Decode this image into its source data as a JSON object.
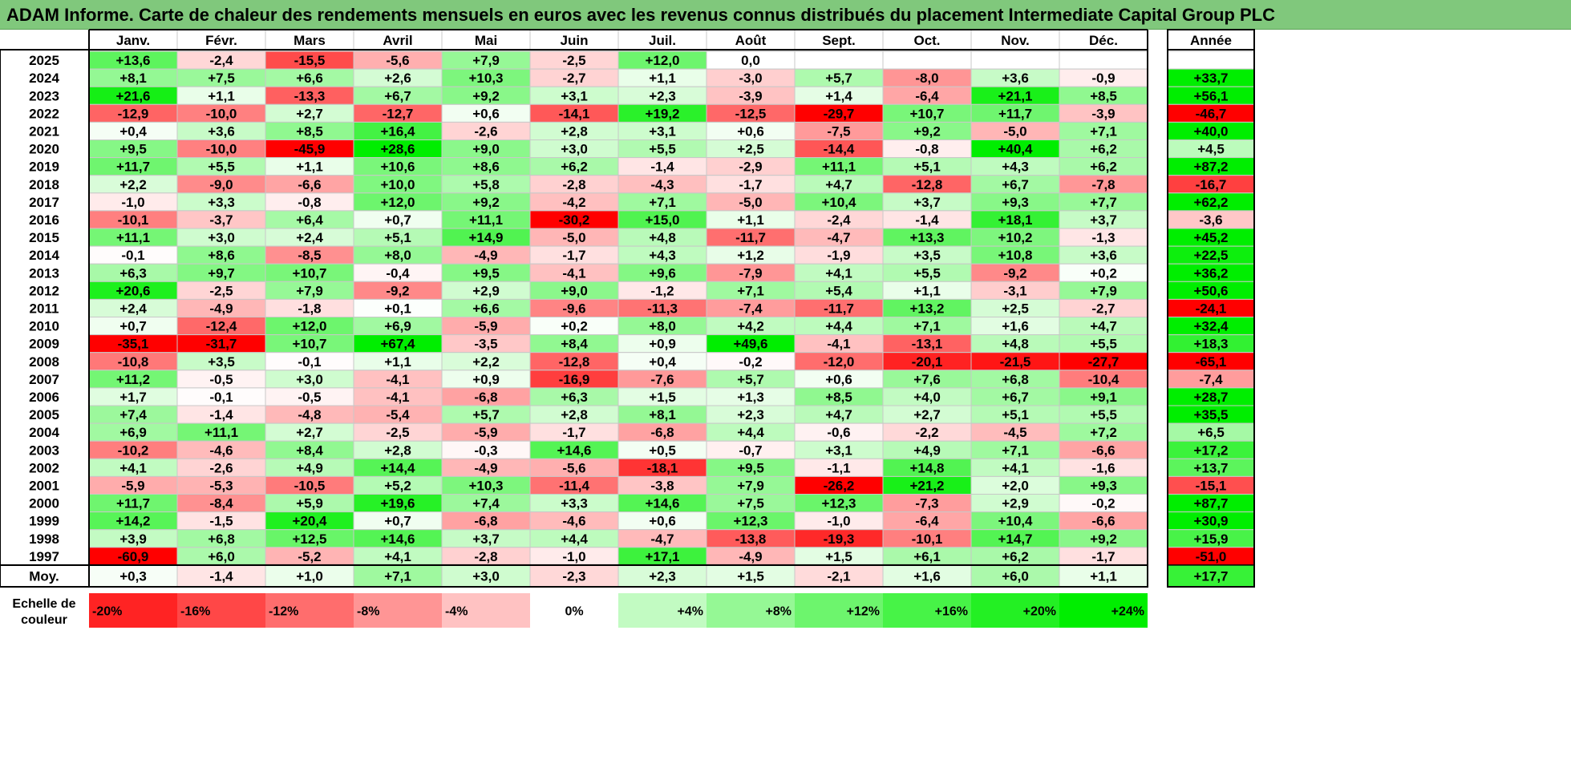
{
  "title": "ADAM Informe. Carte de chaleur des rendements mensuels en euros avec les revenus connus distribués du placement Intermediate Capital Group PLC",
  "chart_data": {
    "type": "heatmap",
    "title": "ADAM Informe. Carte de chaleur des rendements mensuels en euros avec les revenus connus distribués du placement Intermediate Capital Group PLC",
    "columns": [
      "Janv.",
      "Févr.",
      "Mars",
      "Avril",
      "Mai",
      "Juin",
      "Juil.",
      "Août",
      "Sept.",
      "Oct.",
      "Nov.",
      "Déc."
    ],
    "year_column_label": "Année",
    "rows": [
      {
        "year": "2025",
        "values": [
          "+13,6",
          "-2,4",
          "-15,5",
          "-5,6",
          "+7,9",
          "-2,5",
          "+12,0",
          "0,0",
          "",
          "",
          "",
          ""
        ],
        "annual": ""
      },
      {
        "year": "2024",
        "values": [
          "+8,1",
          "+7,5",
          "+6,6",
          "+2,6",
          "+10,3",
          "-2,7",
          "+1,1",
          "-3,0",
          "+5,7",
          "-8,0",
          "+3,6",
          "-0,9"
        ],
        "annual": "+33,7"
      },
      {
        "year": "2023",
        "values": [
          "+21,6",
          "+1,1",
          "-13,3",
          "+6,7",
          "+9,2",
          "+3,1",
          "+2,3",
          "-3,9",
          "+1,4",
          "-6,4",
          "+21,1",
          "+8,5"
        ],
        "annual": "+56,1"
      },
      {
        "year": "2022",
        "values": [
          "-12,9",
          "-10,0",
          "+2,7",
          "-12,7",
          "+0,6",
          "-14,1",
          "+19,2",
          "-12,5",
          "-29,7",
          "+10,7",
          "+11,7",
          "-3,9"
        ],
        "annual": "-46,7"
      },
      {
        "year": "2021",
        "values": [
          "+0,4",
          "+3,6",
          "+8,5",
          "+16,4",
          "-2,6",
          "+2,8",
          "+3,1",
          "+0,6",
          "-7,5",
          "+9,2",
          "-5,0",
          "+7,1"
        ],
        "annual": "+40,0"
      },
      {
        "year": "2020",
        "values": [
          "+9,5",
          "-10,0",
          "-45,9",
          "+28,6",
          "+9,0",
          "+3,0",
          "+5,5",
          "+2,5",
          "-14,4",
          "-0,8",
          "+40,4",
          "+6,2"
        ],
        "annual": "+4,5"
      },
      {
        "year": "2019",
        "values": [
          "+11,7",
          "+5,5",
          "+1,1",
          "+10,6",
          "+8,6",
          "+6,2",
          "-1,4",
          "-2,9",
          "+11,1",
          "+5,1",
          "+4,3",
          "+6,2"
        ],
        "annual": "+87,2"
      },
      {
        "year": "2018",
        "values": [
          "+2,2",
          "-9,0",
          "-6,6",
          "+10,0",
          "+5,8",
          "-2,8",
          "-4,3",
          "-1,7",
          "+4,7",
          "-12,8",
          "+6,7",
          "-7,8"
        ],
        "annual": "-16,7"
      },
      {
        "year": "2017",
        "values": [
          "-1,0",
          "+3,3",
          "-0,8",
          "+12,0",
          "+9,2",
          "-4,2",
          "+7,1",
          "-5,0",
          "+10,4",
          "+3,7",
          "+9,3",
          "+7,7"
        ],
        "annual": "+62,2"
      },
      {
        "year": "2016",
        "values": [
          "-10,1",
          "-3,7",
          "+6,4",
          "+0,7",
          "+11,1",
          "-30,2",
          "+15,0",
          "+1,1",
          "-2,4",
          "-1,4",
          "+18,1",
          "+3,7"
        ],
        "annual": "-3,6"
      },
      {
        "year": "2015",
        "values": [
          "+11,1",
          "+3,0",
          "+2,4",
          "+5,1",
          "+14,9",
          "-5,0",
          "+4,8",
          "-11,7",
          "-4,7",
          "+13,3",
          "+10,2",
          "-1,3"
        ],
        "annual": "+45,2"
      },
      {
        "year": "2014",
        "values": [
          "-0,1",
          "+8,6",
          "-8,5",
          "+8,0",
          "-4,9",
          "-1,7",
          "+4,3",
          "+1,2",
          "-1,9",
          "+3,5",
          "+10,8",
          "+3,6"
        ],
        "annual": "+22,5"
      },
      {
        "year": "2013",
        "values": [
          "+6,3",
          "+9,7",
          "+10,7",
          "-0,4",
          "+9,5",
          "-4,1",
          "+9,6",
          "-7,9",
          "+4,1",
          "+5,5",
          "-9,2",
          "+0,2"
        ],
        "annual": "+36,2"
      },
      {
        "year": "2012",
        "values": [
          "+20,6",
          "-2,5",
          "+7,9",
          "-9,2",
          "+2,9",
          "+9,0",
          "-1,2",
          "+7,1",
          "+5,4",
          "+1,1",
          "-3,1",
          "+7,9"
        ],
        "annual": "+50,6"
      },
      {
        "year": "2011",
        "values": [
          "+2,4",
          "-4,9",
          "-1,8",
          "+0,1",
          "+6,6",
          "-9,6",
          "-11,3",
          "-7,4",
          "-11,7",
          "+13,2",
          "+2,5",
          "-2,7"
        ],
        "annual": "-24,1"
      },
      {
        "year": "2010",
        "values": [
          "+0,7",
          "-12,4",
          "+12,0",
          "+6,9",
          "-5,9",
          "+0,2",
          "+8,0",
          "+4,2",
          "+4,4",
          "+7,1",
          "+1,6",
          "+4,7"
        ],
        "annual": "+32,4"
      },
      {
        "year": "2009",
        "values": [
          "-35,1",
          "-31,7",
          "+10,7",
          "+67,4",
          "-3,5",
          "+8,4",
          "+0,9",
          "+49,6",
          "-4,1",
          "-13,1",
          "+4,8",
          "+5,5"
        ],
        "annual": "+18,3"
      },
      {
        "year": "2008",
        "values": [
          "-10,8",
          "+3,5",
          "-0,1",
          "+1,1",
          "+2,2",
          "-12,8",
          "+0,4",
          "-0,2",
          "-12,0",
          "-20,1",
          "-21,5",
          "-27,7"
        ],
        "annual": "-65,1"
      },
      {
        "year": "2007",
        "values": [
          "+11,2",
          "-0,5",
          "+3,0",
          "-4,1",
          "+0,9",
          "-16,9",
          "-7,6",
          "+5,7",
          "+0,6",
          "+7,6",
          "+6,8",
          "-10,4"
        ],
        "annual": "-7,4"
      },
      {
        "year": "2006",
        "values": [
          "+1,7",
          "-0,1",
          "-0,5",
          "-4,1",
          "-6,8",
          "+6,3",
          "+1,5",
          "+1,3",
          "+8,5",
          "+4,0",
          "+6,7",
          "+9,1"
        ],
        "annual": "+28,7"
      },
      {
        "year": "2005",
        "values": [
          "+7,4",
          "-1,4",
          "-4,8",
          "-5,4",
          "+5,7",
          "+2,8",
          "+8,1",
          "+2,3",
          "+4,7",
          "+2,7",
          "+5,1",
          "+5,5"
        ],
        "annual": "+35,5"
      },
      {
        "year": "2004",
        "values": [
          "+6,9",
          "+11,1",
          "+2,7",
          "-2,5",
          "-5,9",
          "-1,7",
          "-6,8",
          "+4,4",
          "-0,6",
          "-2,2",
          "-4,5",
          "+7,2"
        ],
        "annual": "+6,5"
      },
      {
        "year": "2003",
        "values": [
          "-10,2",
          "-4,6",
          "+8,4",
          "+2,8",
          "-0,3",
          "+14,6",
          "+0,5",
          "-0,7",
          "+3,1",
          "+4,9",
          "+7,1",
          "-6,6"
        ],
        "annual": "+17,2"
      },
      {
        "year": "2002",
        "values": [
          "+4,1",
          "-2,6",
          "+4,9",
          "+14,4",
          "-4,9",
          "-5,6",
          "-18,1",
          "+9,5",
          "-1,1",
          "+14,8",
          "+4,1",
          "-1,6"
        ],
        "annual": "+13,7"
      },
      {
        "year": "2001",
        "values": [
          "-5,9",
          "-5,3",
          "-10,5",
          "+5,2",
          "+10,3",
          "-11,4",
          "-3,8",
          "+7,9",
          "-26,2",
          "+21,2",
          "+2,0",
          "+9,3"
        ],
        "annual": "-15,1"
      },
      {
        "year": "2000",
        "values": [
          "+11,7",
          "-8,4",
          "+5,9",
          "+19,6",
          "+7,4",
          "+3,3",
          "+14,6",
          "+7,5",
          "+12,3",
          "-7,3",
          "+2,9",
          "-0,2"
        ],
        "annual": "+87,7"
      },
      {
        "year": "1999",
        "values": [
          "+14,2",
          "-1,5",
          "+20,4",
          "+0,7",
          "-6,8",
          "-4,6",
          "+0,6",
          "+12,3",
          "-1,0",
          "-6,4",
          "+10,4",
          "-6,6"
        ],
        "annual": "+30,9"
      },
      {
        "year": "1998",
        "values": [
          "+3,9",
          "+6,8",
          "+12,5",
          "+14,6",
          "+3,7",
          "+4,4",
          "-4,7",
          "-13,8",
          "-19,3",
          "-10,1",
          "+14,7",
          "+9,2"
        ],
        "annual": "+15,9"
      },
      {
        "year": "1997",
        "values": [
          "-60,9",
          "+6,0",
          "-5,2",
          "+4,1",
          "-2,8",
          "-1,0",
          "+17,1",
          "-4,9",
          "+1,5",
          "+6,1",
          "+6,2",
          "-1,7"
        ],
        "annual": "-51,0"
      }
    ],
    "average": {
      "label": "Moy.",
      "values": [
        "+0,3",
        "-1,4",
        "+1,0",
        "+7,1",
        "+3,0",
        "-2,3",
        "+2,3",
        "+1,5",
        "-2,1",
        "+1,6",
        "+6,0",
        "+1,1"
      ],
      "annual": "+17,7"
    },
    "color_scale": {
      "label_line1": "Echelle de",
      "label_line2": "couleur",
      "steps": [
        "-20%",
        "-16%",
        "-12%",
        "-8%",
        "-4%",
        "0%",
        "+4%",
        "+8%",
        "+12%",
        "+16%",
        "+20%",
        "+24%"
      ],
      "step_values": [
        -20,
        -16,
        -12,
        -8,
        -4,
        0,
        4,
        8,
        12,
        16,
        20,
        24
      ],
      "colors": {
        "max_negative": "#ff0000",
        "neutral": "#ffffff",
        "max_positive": "#00ee00"
      }
    }
  }
}
